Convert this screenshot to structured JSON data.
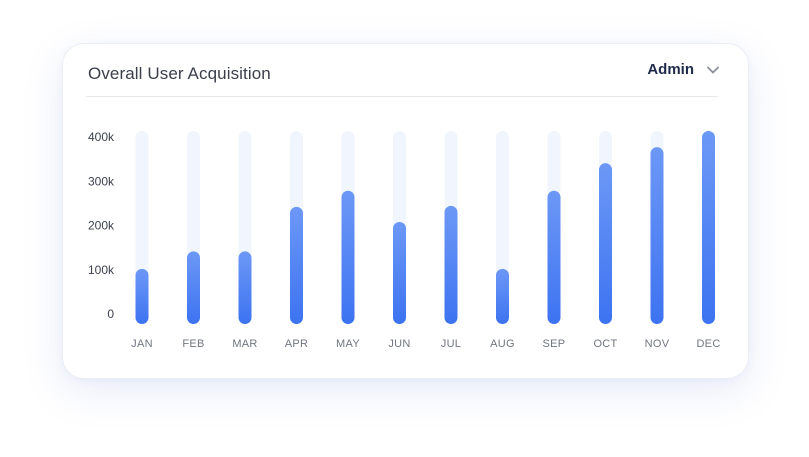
{
  "card": {
    "title": "Overall User Acquisition"
  },
  "filter": {
    "selected": "Admin",
    "icon": "chevron-down-icon"
  },
  "colors": {
    "bar_top": "#6c98f6",
    "bar_bottom": "#3d73f1",
    "track": "#f1f6fe"
  },
  "chart_data": {
    "type": "bar",
    "title": "",
    "xlabel": "",
    "ylabel": "",
    "categories": [
      "JAN",
      "FEB",
      "MAR",
      "APR",
      "MAY",
      "JUN",
      "JUL",
      "AUG",
      "SEP",
      "OCT",
      "NOV",
      "DEC"
    ],
    "values": [
      120000,
      158000,
      158000,
      255000,
      290000,
      222000,
      257000,
      120000,
      290000,
      350000,
      385000,
      420000
    ],
    "ylim": [
      0,
      420000
    ],
    "yticks": [
      {
        "value": 0,
        "label": "0"
      },
      {
        "value": 100000,
        "label": "100k"
      },
      {
        "value": 200000,
        "label": "200k"
      },
      {
        "value": 300000,
        "label": "300k"
      },
      {
        "value": 400000,
        "label": "400k"
      }
    ],
    "grid": false,
    "legend": "none"
  }
}
